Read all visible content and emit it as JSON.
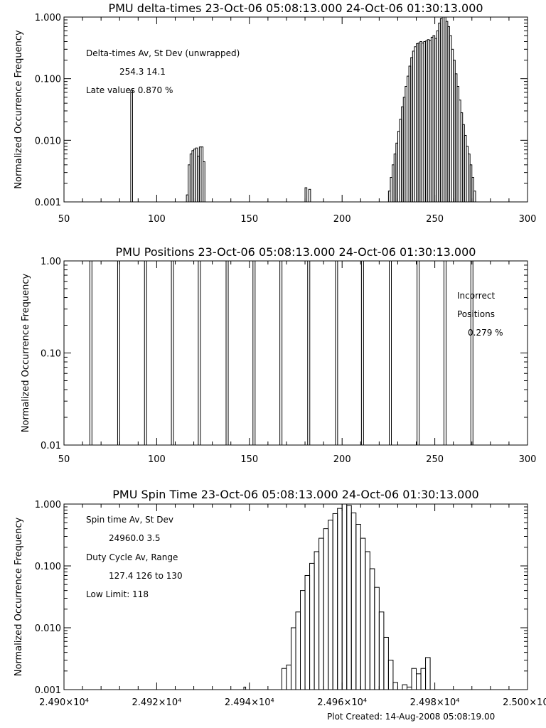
{
  "footer": {
    "label": "Plot Created:",
    "timestamp": "14-Aug-2008 05:08:19.00"
  },
  "chart_data": [
    {
      "type": "step-histogram",
      "title": "PMU delta-times 23-Oct-06 05:08:13.000 24-Oct-06 01:30:13.000",
      "xlabel": "",
      "ylabel": "Normalized Occurrence Frequency",
      "xlim": [
        50,
        300
      ],
      "ylim": [
        0.001,
        1.0
      ],
      "yscale": "log",
      "x_ticks": [
        "50",
        "100",
        "150",
        "200",
        "250",
        "300"
      ],
      "x_tick_values": [
        50,
        100,
        150,
        200,
        250,
        300
      ],
      "y_ticks": [
        "0.001",
        "0.010",
        "0.100",
        "1.000"
      ],
      "y_tick_values": [
        0.001,
        0.01,
        0.1,
        1.0
      ],
      "annotations": [
        "Delta-times Av, St Dev (unwrapped)",
        "254.3   14.1",
        "Late values   0.870 %"
      ],
      "bars": [
        [
          86,
          87,
          0.065
        ],
        [
          116,
          117,
          0.0013
        ],
        [
          117,
          118,
          0.004
        ],
        [
          118,
          119,
          0.006
        ],
        [
          119,
          120,
          0.0068
        ],
        [
          120,
          121,
          0.0072
        ],
        [
          121,
          122,
          0.0075
        ],
        [
          122,
          123,
          0.0055
        ],
        [
          123,
          124,
          0.0078
        ],
        [
          124,
          125,
          0.0078
        ],
        [
          125,
          126,
          0.0045
        ],
        [
          180,
          181,
          0.0017
        ],
        [
          182,
          183,
          0.0016
        ],
        [
          225,
          226,
          0.0015
        ],
        [
          226,
          227,
          0.0025
        ],
        [
          227,
          228,
          0.004
        ],
        [
          228,
          229,
          0.006
        ],
        [
          229,
          230,
          0.009
        ],
        [
          230,
          231,
          0.014
        ],
        [
          231,
          232,
          0.022
        ],
        [
          232,
          233,
          0.035
        ],
        [
          233,
          234,
          0.05
        ],
        [
          234,
          235,
          0.075
        ],
        [
          235,
          236,
          0.11
        ],
        [
          236,
          237,
          0.16
        ],
        [
          237,
          238,
          0.22
        ],
        [
          238,
          239,
          0.28
        ],
        [
          239,
          240,
          0.33
        ],
        [
          240,
          241,
          0.37
        ],
        [
          241,
          242,
          0.38
        ],
        [
          242,
          243,
          0.4
        ],
        [
          243,
          244,
          0.38
        ],
        [
          244,
          245,
          0.4
        ],
        [
          245,
          246,
          0.41
        ],
        [
          246,
          247,
          0.43
        ],
        [
          247,
          248,
          0.42
        ],
        [
          248,
          249,
          0.47
        ],
        [
          249,
          250,
          0.5
        ],
        [
          250,
          251,
          0.45
        ],
        [
          251,
          252,
          0.6
        ],
        [
          252,
          253,
          0.8
        ],
        [
          253,
          254,
          0.95
        ],
        [
          254,
          255,
          1.0
        ],
        [
          255,
          256,
          1.0
        ],
        [
          256,
          257,
          0.85
        ],
        [
          257,
          258,
          0.7
        ],
        [
          258,
          259,
          0.5
        ],
        [
          259,
          260,
          0.3
        ],
        [
          260,
          261,
          0.2
        ],
        [
          261,
          262,
          0.12
        ],
        [
          262,
          263,
          0.075
        ],
        [
          263,
          264,
          0.045
        ],
        [
          264,
          265,
          0.028
        ],
        [
          265,
          266,
          0.018
        ],
        [
          266,
          267,
          0.012
        ],
        [
          267,
          268,
          0.008
        ],
        [
          268,
          269,
          0.006
        ],
        [
          269,
          270,
          0.004
        ],
        [
          270,
          271,
          0.0025
        ],
        [
          271,
          272,
          0.0015
        ]
      ]
    },
    {
      "type": "spikes",
      "title": "PMU Positions 23-Oct-06 05:08:13.000 24-Oct-06 01:30:13.000",
      "xlabel": "",
      "ylabel": "Normalized Occurrence Frequency",
      "xlim": [
        50,
        300
      ],
      "ylim": [
        0.01,
        1.0
      ],
      "yscale": "log",
      "x_ticks": [
        "50",
        "100",
        "150",
        "200",
        "250",
        "300"
      ],
      "x_tick_values": [
        50,
        100,
        150,
        200,
        250,
        300
      ],
      "y_ticks": [
        "0.01",
        "0.10",
        "1.00"
      ],
      "y_tick_values": [
        0.01,
        0.1,
        1.0
      ],
      "annotations": [
        "Incorrect",
        "Positions",
        "0.279 %"
      ],
      "spike_value": 1.0,
      "spikes_x": [
        64.5,
        79.5,
        94,
        108.5,
        123,
        138,
        152.5,
        167,
        182,
        197,
        211,
        226,
        241,
        255.5,
        270
      ]
    },
    {
      "type": "step-histogram",
      "title": "PMU Spin Time 23-Oct-06 05:08:13.000 24-Oct-06 01:30:13.000",
      "xlabel": "",
      "ylabel": "Normalized Occurrence Frequency",
      "xlim": [
        24900,
        25000
      ],
      "ylim": [
        0.001,
        1.0
      ],
      "yscale": "log",
      "x_ticks": [
        "2.490×10⁴",
        "2.492×10⁴",
        "2.494×10⁴",
        "2.496×10⁴",
        "2.498×10⁴",
        "2.500×10⁴"
      ],
      "x_tick_values": [
        24900,
        24920,
        24940,
        24960,
        24980,
        25000
      ],
      "y_ticks": [
        "0.001",
        "0.010",
        "0.100",
        "1.000"
      ],
      "y_tick_values": [
        0.001,
        0.01,
        0.1,
        1.0
      ],
      "annotations": [
        "Spin time Av, St Dev",
        "24960.0       3.5",
        "Duty Cycle Av, Range",
        "127.4 126 to 130",
        "Low Limit: 118"
      ],
      "bars": [
        [
          24938.8,
          24939.2,
          0.0011
        ],
        [
          24947,
          24948,
          0.0022
        ],
        [
          24948,
          24949,
          0.0025
        ],
        [
          24949,
          24950,
          0.01
        ],
        [
          24950,
          24951,
          0.018
        ],
        [
          24951,
          24952,
          0.04
        ],
        [
          24952,
          24953,
          0.07
        ],
        [
          24953,
          24954,
          0.11
        ],
        [
          24954,
          24955,
          0.17
        ],
        [
          24955,
          24956,
          0.28
        ],
        [
          24956,
          24957,
          0.4
        ],
        [
          24957,
          24958,
          0.55
        ],
        [
          24958,
          24959,
          0.7
        ],
        [
          24959,
          24960,
          0.85
        ],
        [
          24960,
          24961,
          1.0
        ],
        [
          24961,
          24962,
          0.95
        ],
        [
          24962,
          24963,
          0.72
        ],
        [
          24963,
          24964,
          0.47
        ],
        [
          24964,
          24965,
          0.28
        ],
        [
          24965,
          24966,
          0.17
        ],
        [
          24966,
          24967,
          0.09
        ],
        [
          24967,
          24968,
          0.045
        ],
        [
          24968,
          24969,
          0.018
        ],
        [
          24969,
          24970,
          0.007
        ],
        [
          24970,
          24971,
          0.003
        ],
        [
          24971,
          24972,
          0.0013
        ],
        [
          24972,
          24973,
          0.001
        ],
        [
          24973,
          24974,
          0.0012
        ],
        [
          24974,
          24975,
          0.0011
        ],
        [
          24975,
          24976,
          0.0022
        ],
        [
          24976,
          24977,
          0.0018
        ],
        [
          24977,
          24978,
          0.0022
        ],
        [
          24978,
          24979,
          0.0033
        ]
      ]
    }
  ]
}
